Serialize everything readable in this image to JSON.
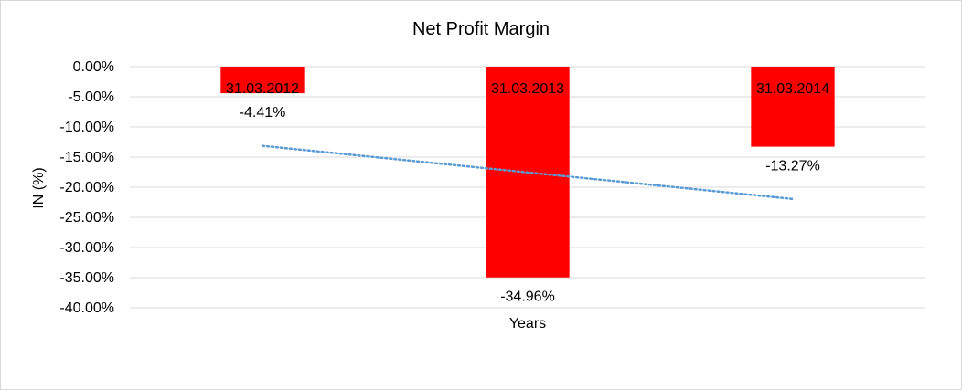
{
  "chart_data": {
    "type": "bar",
    "title": "Net Profit Margin",
    "xlabel": "Years",
    "ylabel": "IN (%)",
    "categories": [
      "31.03.2012",
      "31.03.2013",
      "31.03.2014"
    ],
    "series": [
      {
        "values": [
          -4.41,
          -34.96,
          -13.27
        ],
        "color": "#ff0000"
      }
    ],
    "data_labels": [
      "-4.41%",
      "-34.96%",
      "-13.27%"
    ],
    "ylim": [
      -40,
      0
    ],
    "y_ticks": [
      0,
      -5,
      -10,
      -15,
      -20,
      -25,
      -30,
      -35,
      -40
    ],
    "y_tick_labels": [
      "0.00%",
      "-5.00%",
      "-10.00%",
      "-15.00%",
      "-20.00%",
      "-25.00%",
      "-30.00%",
      "-35.00%",
      "-40.00%"
    ],
    "trendline": {
      "type": "linear",
      "style": "dotted",
      "color": "#5b9bd5",
      "values": [
        -13.13,
        -17.54,
        -21.95
      ]
    },
    "grid": true,
    "legend": "none",
    "category_labels_position": "inside-top"
  }
}
